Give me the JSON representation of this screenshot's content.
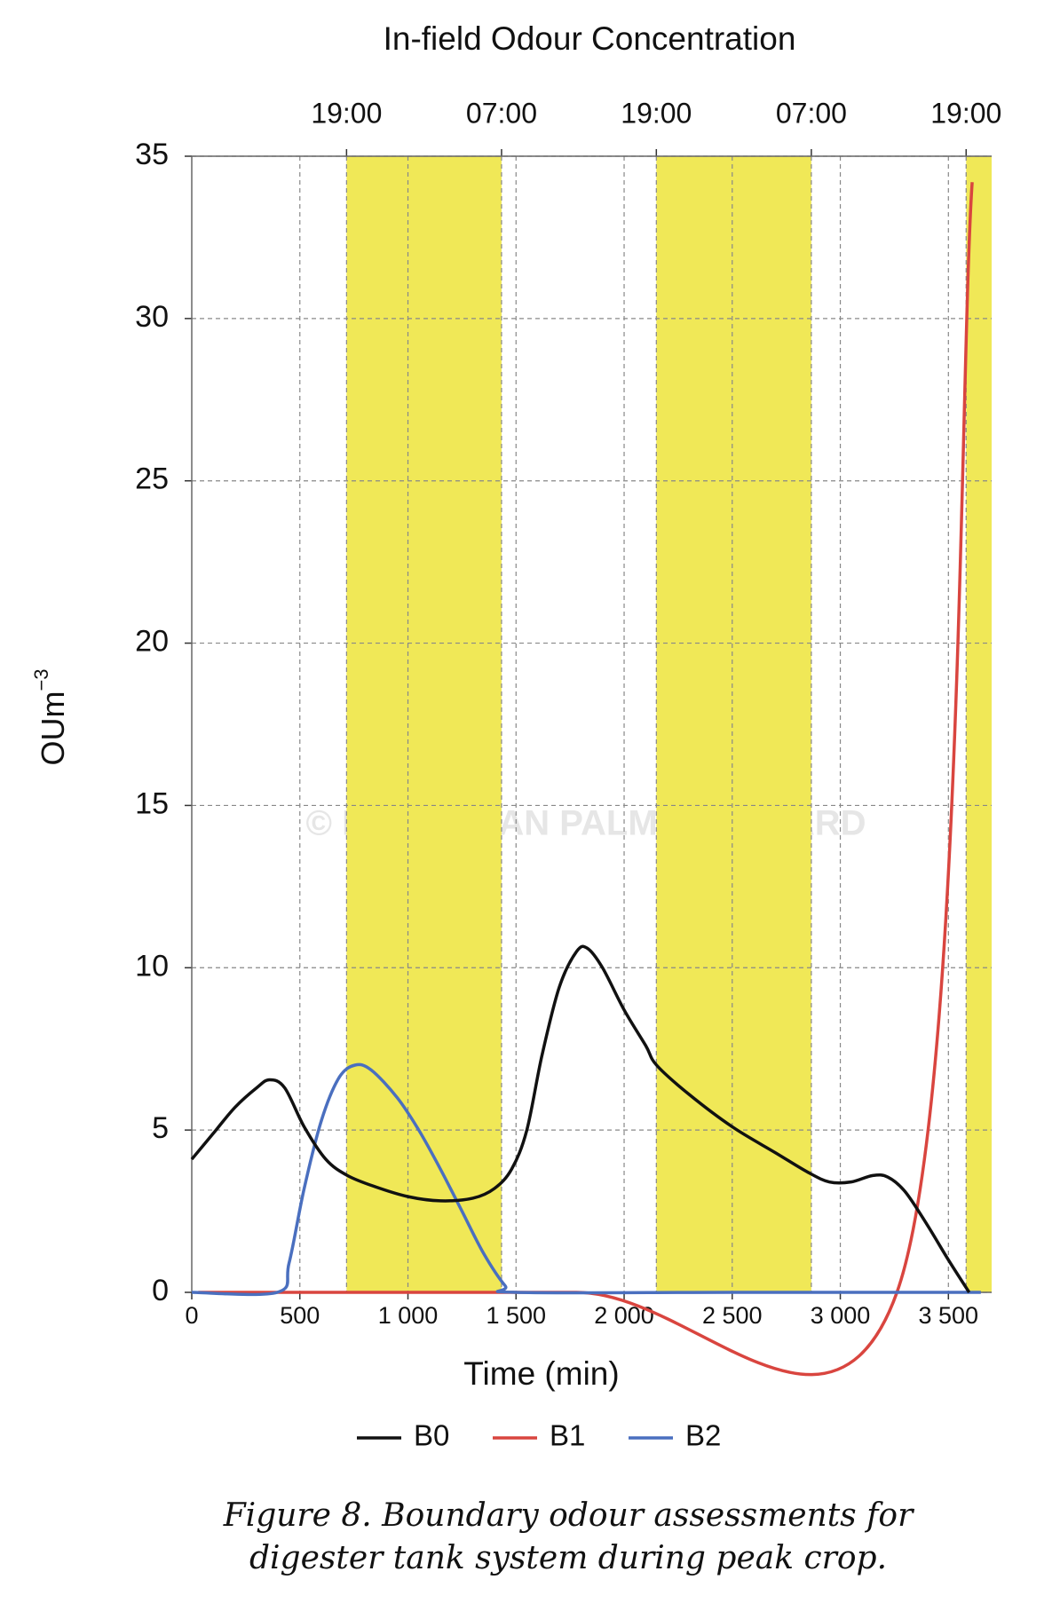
{
  "chart_data": {
    "type": "line",
    "title": "In-field Odour Concentration",
    "x_label": "Time (min)",
    "y_label": {
      "base": "OUm",
      "superscript": "−3"
    },
    "watermark": "© MALAYSIAN PALM OIL BOARD",
    "caption": [
      "Figure 8. Boundary odour assessments for",
      "digester tank system during peak crop."
    ],
    "xlim": [
      0,
      3700
    ],
    "ylim": [
      0,
      35
    ],
    "xticks": [
      0,
      500,
      {
        "value": 1000,
        "label": "1 000"
      },
      {
        "value": 1500,
        "label": "1 500"
      },
      {
        "value": 2000,
        "label": "2 000"
      },
      {
        "value": 2500,
        "label": "2 500"
      },
      {
        "value": 3000,
        "label": "3 000"
      },
      {
        "value": 3500,
        "label": "3 500"
      }
    ],
    "yticks": [
      0,
      5,
      10,
      15,
      20,
      25,
      30,
      35
    ],
    "x2ticks": [
      {
        "value": 716,
        "label": "19:00"
      },
      {
        "value": 1433,
        "label": "07:00"
      },
      {
        "value": 2149,
        "label": "19:00"
      },
      {
        "value": 2866,
        "label": "07:00"
      },
      {
        "value": 3582,
        "label": "19:00"
      }
    ],
    "bands": [
      [
        716,
        1433
      ],
      [
        2149,
        2866
      ],
      [
        3582,
        3700
      ]
    ],
    "band_color": "#f0e857",
    "grid": true,
    "series": [
      {
        "name": "B0",
        "color": "#111111",
        "x": [
          0,
          100,
          200,
          300,
          360,
          430,
          520,
          620,
          720,
          850,
          1000,
          1150,
          1300,
          1400,
          1480,
          1550,
          1620,
          1700,
          1780,
          1830,
          1900,
          2000,
          2100,
          2150,
          2300,
          2500,
          2700,
          2850,
          2950,
          3050,
          3150,
          3220,
          3300,
          3400,
          3500,
          3596
        ],
        "values": [
          4.1,
          4.9,
          5.7,
          6.3,
          6.55,
          6.3,
          5.1,
          4.1,
          3.6,
          3.25,
          2.95,
          2.82,
          2.9,
          3.2,
          3.8,
          5.0,
          7.3,
          9.4,
          10.5,
          10.6,
          10.0,
          8.7,
          7.6,
          7.0,
          6.1,
          5.1,
          4.3,
          3.7,
          3.4,
          3.4,
          3.6,
          3.55,
          3.1,
          2.1,
          1.0,
          0
        ]
      },
      {
        "name": "B1",
        "color": "#d9453f",
        "x": [
          30,
          1780,
          3262,
          3610
        ],
        "values": [
          0,
          0,
          0,
          34.2
        ]
      },
      {
        "name": "B2",
        "color": "#4a6fbf",
        "x": [
          0,
          396,
          450,
          520,
          600,
          680,
          755,
          830,
          950,
          1050,
          1150,
          1250,
          1350,
          1450,
          1500,
          2500,
          3650
        ],
        "values": [
          0,
          0,
          0.9,
          3.2,
          5.3,
          6.6,
          7.0,
          6.85,
          6.0,
          5.0,
          3.8,
          2.5,
          1.2,
          0.2,
          0,
          0,
          0
        ]
      }
    ],
    "legend": "bottom"
  }
}
